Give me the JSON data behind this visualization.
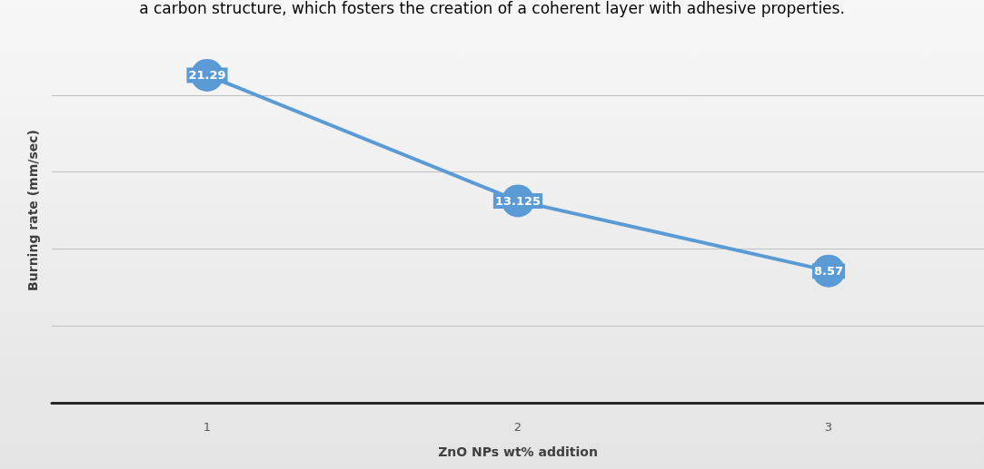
{
  "chart_data": {
    "type": "line",
    "annotations": [
      "a carbon structure, which fosters the creation of a coherent layer with adhesive properties."
    ],
    "xlabel": "ZnO NPs wt% addition",
    "ylabel": "Burning rate (mm/sec)",
    "categories": [
      "1",
      "2",
      "3"
    ],
    "series": [
      {
        "color": "#5b9bd5",
        "values": [
          21.29,
          13.125,
          8.57
        ]
      }
    ],
    "yticks": [
      {
        "value": 0,
        "label": null
      },
      {
        "value": 5,
        "label": null
      },
      {
        "value": 10,
        "label": null
      },
      {
        "value": 15,
        "label": null
      },
      {
        "value": 20,
        "label": null
      }
    ],
    "tick_labels": "x",
    "grid": "y",
    "data_labels": true,
    "marker": "circle",
    "line_style": "solid"
  }
}
